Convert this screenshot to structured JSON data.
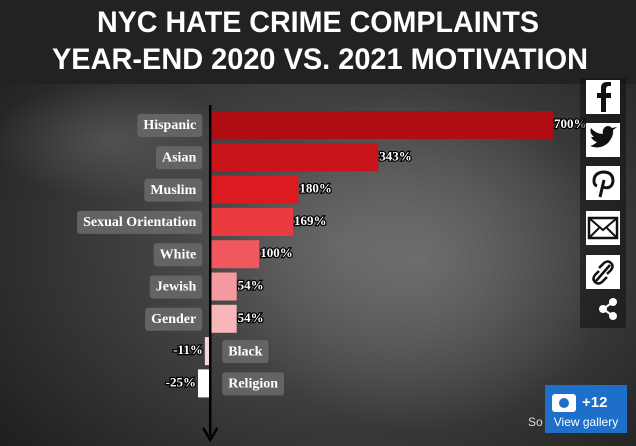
{
  "chart_data": {
    "type": "bar",
    "orientation": "horizontal",
    "title": [
      "NYC HATE CRIME COMPLAINTS",
      "YEAR-END 2020 VS. 2021 MOTIVATION"
    ],
    "categories": [
      "Hispanic",
      "Asian",
      "Muslim",
      "Sexual Orientation",
      "White",
      "Jewish",
      "Gender",
      "Black",
      "Religion"
    ],
    "values": [
      700,
      343,
      180,
      169,
      100,
      54,
      54,
      -11,
      -25
    ],
    "value_labels": [
      "700%",
      "343%",
      "180%",
      "169%",
      "100%",
      "54%",
      "54%",
      "-11%",
      "-25%"
    ],
    "colors": [
      "#b00d12",
      "#c8141a",
      "#dc1a22",
      "#ea3a42",
      "#f0585e",
      "#f49aa0",
      "#f6b6ba",
      "#f7d6d8",
      "#ffffff"
    ],
    "xlim": [
      -25,
      700
    ]
  },
  "source": "So",
  "gallery": {
    "count": "+12",
    "label": "View gallery"
  }
}
